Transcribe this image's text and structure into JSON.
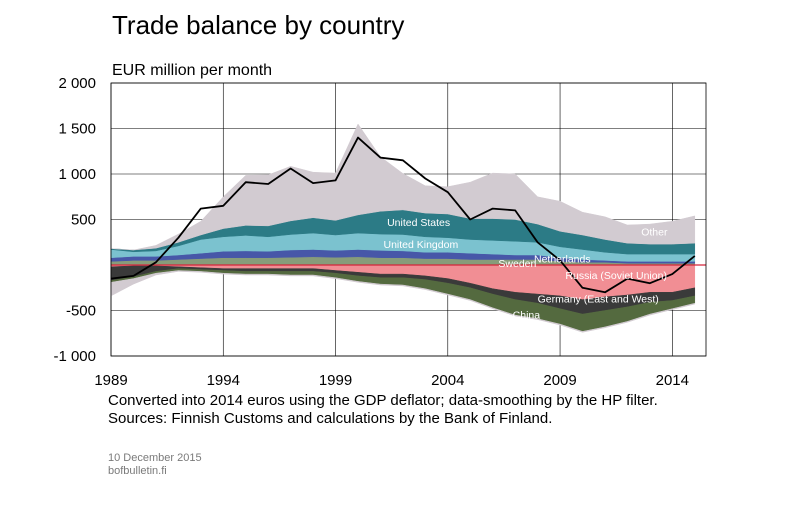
{
  "chart_data": {
    "type": "area",
    "title": "Trade balance by country",
    "ylabel": "EUR million per month",
    "xlabel": "",
    "xlim": [
      1989,
      2015.5
    ],
    "ylim": [
      -1000,
      2000
    ],
    "yticks": [
      {
        "value": 2000,
        "label": "2 000"
      },
      {
        "value": 1500,
        "label": "1 500"
      },
      {
        "value": 1000,
        "label": "1 000"
      },
      {
        "value": 500,
        "label": "500"
      },
      {
        "value": 0,
        "label": ""
      },
      {
        "value": -500,
        "label": "-500"
      },
      {
        "value": -1000,
        "label": "-1 000"
      }
    ],
    "xticks": [
      {
        "value": 1989,
        "label": "1989"
      },
      {
        "value": 1994,
        "label": "1994"
      },
      {
        "value": 1999,
        "label": "1999"
      },
      {
        "value": 2004,
        "label": "2004"
      },
      {
        "value": 2009,
        "label": "2009"
      },
      {
        "value": 2014,
        "label": "2014"
      }
    ],
    "grid": true,
    "x": [
      1989,
      1990,
      1991,
      1992,
      1993,
      1994,
      1995,
      1996,
      1997,
      1998,
      1999,
      2000,
      2001,
      2002,
      2003,
      2004,
      2005,
      2006,
      2007,
      2008,
      2009,
      2010,
      2011,
      2012,
      2013,
      2014,
      2015
    ],
    "positive_series": [
      {
        "name": "Sweden",
        "color": "#879c7a",
        "values": [
          40,
          50,
          50,
          60,
          70,
          80,
          80,
          80,
          85,
          90,
          85,
          90,
          80,
          80,
          70,
          70,
          60,
          60,
          60,
          60,
          40,
          30,
          30,
          20,
          20,
          20,
          20
        ]
      },
      {
        "name": "Netherlands",
        "color": "#4757a8",
        "values": [
          40,
          45,
          45,
          50,
          60,
          70,
          75,
          70,
          80,
          80,
          75,
          80,
          80,
          75,
          70,
          70,
          70,
          60,
          50,
          50,
          40,
          30,
          20,
          20,
          20,
          20,
          20
        ]
      },
      {
        "name": "United Kingdom",
        "color": "#7bc2cf",
        "values": [
          90,
          50,
          60,
          100,
          150,
          160,
          170,
          160,
          170,
          180,
          170,
          180,
          180,
          180,
          170,
          160,
          150,
          150,
          150,
          140,
          120,
          110,
          90,
          80,
          80,
          80,
          80
        ]
      },
      {
        "name": "United States",
        "color": "#2c7b86",
        "values": [
          10,
          20,
          30,
          40,
          50,
          90,
          110,
          120,
          150,
          170,
          160,
          200,
          250,
          270,
          260,
          260,
          230,
          240,
          240,
          200,
          170,
          160,
          140,
          120,
          110,
          110,
          120
        ]
      },
      {
        "name": "Other",
        "color": "#d2cbd1",
        "values": [
          0,
          0,
          30,
          90,
          150,
          350,
          550,
          560,
          600,
          500,
          520,
          1000,
          600,
          400,
          300,
          300,
          400,
          500,
          500,
          300,
          330,
          250,
          250,
          200,
          220,
          250,
          300
        ]
      }
    ],
    "negative_series": [
      {
        "name": "Russia (Soviet Union)",
        "color": "#f18e94",
        "values": [
          -20,
          -10,
          -10,
          -20,
          -30,
          -40,
          -40,
          -40,
          -40,
          -40,
          -60,
          -80,
          -100,
          -100,
          -120,
          -150,
          -200,
          -260,
          -300,
          -320,
          -340,
          -380,
          -350,
          -330,
          -300,
          -300,
          -250
        ]
      },
      {
        "name": "Germany (East and West)",
        "color": "#3a3a3a",
        "values": [
          -150,
          -120,
          -60,
          -20,
          -20,
          -20,
          -30,
          -30,
          -30,
          -30,
          -30,
          -40,
          -40,
          -40,
          -40,
          -50,
          -50,
          -60,
          -80,
          -100,
          -140,
          -160,
          -150,
          -130,
          -110,
          -90,
          -90
        ]
      },
      {
        "name": "China",
        "color": "#546a3f",
        "values": [
          -20,
          -20,
          -20,
          -20,
          -20,
          -30,
          -30,
          -30,
          -40,
          -40,
          -50,
          -60,
          -70,
          -80,
          -100,
          -120,
          -130,
          -150,
          -170,
          -170,
          -170,
          -190,
          -180,
          -160,
          -130,
          -90,
          -80
        ]
      },
      {
        "name": "Other",
        "color": "#d2cbd1",
        "values": [
          -150,
          -60,
          -20,
          -10,
          -10,
          -10,
          -10,
          -10,
          -10,
          -10,
          -10,
          -10,
          -10,
          -10,
          -10,
          -10,
          -10,
          -10,
          -10,
          -10,
          -10,
          -10,
          -10,
          -10,
          -10,
          -10,
          -10
        ]
      }
    ],
    "total_line": {
      "name": "Total",
      "color": "#000000",
      "values": [
        -150,
        -120,
        30,
        300,
        620,
        650,
        910,
        890,
        1060,
        900,
        930,
        1400,
        1180,
        1150,
        950,
        800,
        500,
        620,
        600,
        250,
        50,
        -250,
        -300,
        -150,
        -200,
        -100,
        100
      ]
    },
    "labels": [
      {
        "text": "United States",
        "x": 2002.7,
        "y": 470,
        "color": "#ffffff"
      },
      {
        "text": "United Kingdom",
        "x": 2002.8,
        "y": 230,
        "color": "#ffffff"
      },
      {
        "text": "Other",
        "x": 2013.2,
        "y": 370,
        "color": "#ffffff"
      },
      {
        "text": "Sweden",
        "x": 2007.1,
        "y": 20,
        "color": "#ffffff"
      },
      {
        "text": "Netherlands",
        "x": 2009.1,
        "y": 70,
        "color": "#ffffff"
      },
      {
        "text": "Russia (Soviet Union)",
        "x": 2011.5,
        "y": -110,
        "color": "#ffffff"
      },
      {
        "text": "Germany (East and West)",
        "x": 2010.7,
        "y": -370,
        "color": "#ffffff"
      },
      {
        "text": "China",
        "x": 2007.5,
        "y": -545,
        "color": "#ffffff"
      }
    ]
  },
  "notes": {
    "line1": "Converted into 2014 euros using the GDP deflator; data-smoothing by the HP filter.",
    "line2": "Sources: Finnish Customs and calculations by the Bank of Finland."
  },
  "footer": {
    "date": "10 December 2015",
    "site": "bofbulletin.fi"
  }
}
